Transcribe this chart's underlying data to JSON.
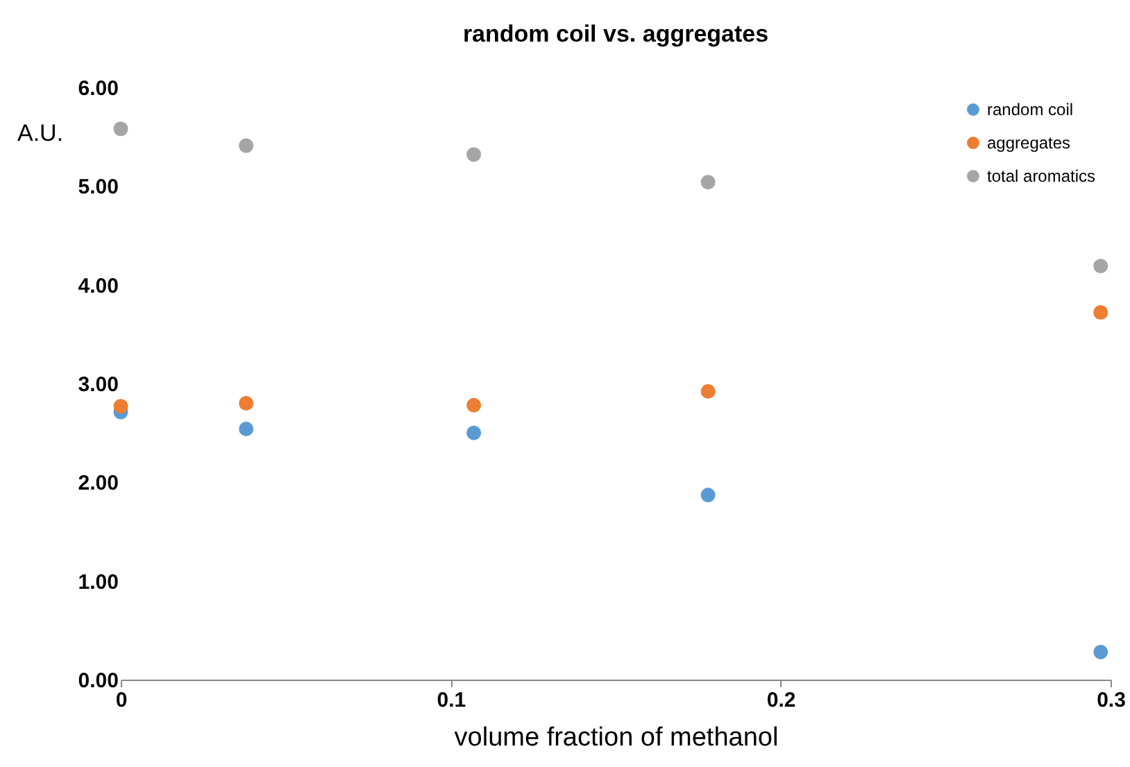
{
  "chart_data": {
    "type": "scatter",
    "title": "random coil vs. aggregates",
    "xlabel": "volume fraction of methanol",
    "ylabel": "A.U.",
    "x": [
      0,
      0.038,
      0.107,
      0.178,
      0.297
    ],
    "series": [
      {
        "name": "random coil",
        "color": "#5b9bd5",
        "values": [
          2.71,
          2.54,
          2.5,
          1.87,
          0.28
        ]
      },
      {
        "name": "aggregates",
        "color": "#ed7d31",
        "values": [
          2.77,
          2.8,
          2.78,
          2.92,
          3.72
        ]
      },
      {
        "name": "total aromatics",
        "color": "#a5a5a5",
        "values": [
          5.58,
          5.41,
          5.32,
          5.04,
          4.19
        ]
      }
    ],
    "xlim": [
      0,
      0.3
    ],
    "xticks": [
      0,
      0.1,
      0.2,
      0.3
    ],
    "ylim": [
      0,
      6
    ],
    "yticks": [
      {
        "value": 0,
        "label": "0.00"
      },
      {
        "value": 1,
        "label": "1.00"
      },
      {
        "value": 2,
        "label": "2.00"
      },
      {
        "value": 3,
        "label": "3.00"
      },
      {
        "value": 4,
        "label": "4.00"
      },
      {
        "value": 5,
        "label": "5.00"
      },
      {
        "value": 6,
        "label": "6.00"
      }
    ],
    "grid": false,
    "legend": "top right",
    "marker": "circle"
  }
}
